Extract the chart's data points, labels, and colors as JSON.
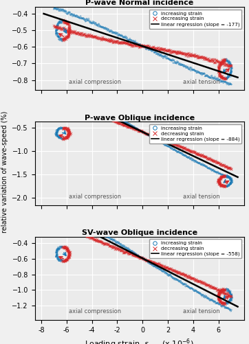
{
  "panels": [
    {
      "title": "P-wave Normal incidence",
      "slope_label": -177,
      "slope_plot": -0.025,
      "intercept": -0.596,
      "ylim": [
        -0.86,
        -0.36
      ],
      "yticks": [
        -0.8,
        -0.7,
        -0.6,
        -0.5,
        -0.4
      ],
      "loop_amp": 0.055,
      "left_loop_x": -6.3,
      "right_loop_x": 6.5,
      "left_loop_top_y": -0.445,
      "right_loop_bot_y": -0.79
    },
    {
      "title": "P-wave Oblique incidence",
      "slope_label": -884,
      "slope_plot": -0.128,
      "intercept": -0.596,
      "ylim": [
        -2.15,
        -0.38
      ],
      "yticks": [
        -2.0,
        -1.5,
        -1.0,
        -0.5
      ],
      "loop_amp": 0.11,
      "left_loop_x": -6.3,
      "right_loop_x": 6.5,
      "left_loop_top_y": -0.51,
      "right_loop_bot_y": -1.75
    },
    {
      "title": "SV-wave Oblique incidence",
      "slope_label": -558,
      "slope_plot": -0.082,
      "intercept": -0.596,
      "ylim": [
        -1.38,
        -0.32
      ],
      "yticks": [
        -1.2,
        -1.0,
        -0.8,
        -0.6,
        -0.4
      ],
      "loop_amp": 0.09,
      "left_loop_x": -6.3,
      "right_loop_x": 6.5,
      "left_loop_top_y": -0.45,
      "right_loop_bot_y": -1.17
    }
  ],
  "xlim": [
    -8.5,
    8.0
  ],
  "xticks": [
    -8,
    -6,
    -4,
    -2,
    0,
    2,
    4,
    6
  ],
  "x_data_start": -7.0,
  "x_data_end": 7.0,
  "blue_color": "#1878b4",
  "red_color": "#d62728",
  "bg_color": "#ebebeb",
  "grid_color": "#ffffff",
  "ylabel": "relative variation of wave-speed (%)",
  "axial_compression": "axial compression",
  "axial_tension": "axial tension"
}
